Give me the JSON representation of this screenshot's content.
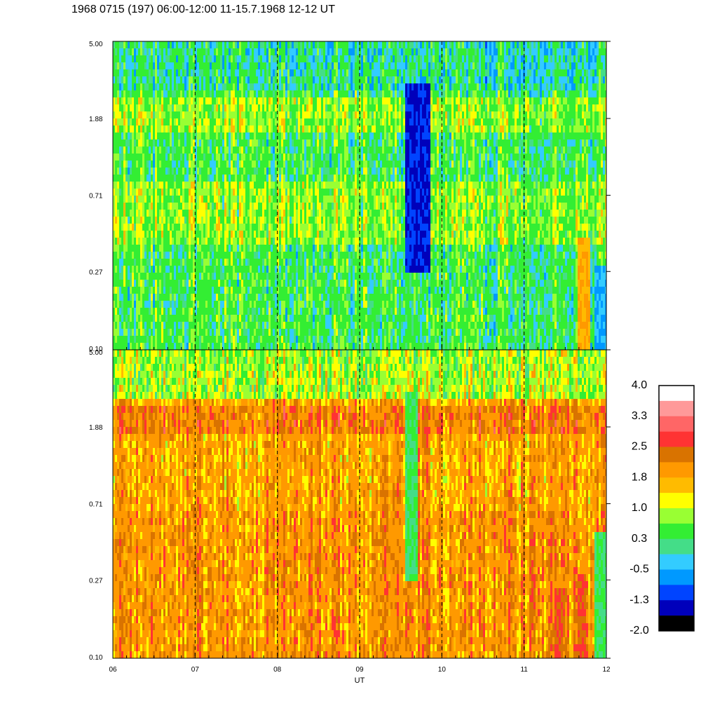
{
  "title": "1968 0715 (197) 06:00-12:00 11-15.7.1968  12-12 UT",
  "chart_data": [
    {
      "type": "heatmap",
      "panel": "upper",
      "title": "",
      "xlabel": "",
      "ylabel": "",
      "yscale": "log",
      "ylim": [
        0.1,
        5.0
      ],
      "y_tick_labels": [
        "5.00",
        "1.88",
        "0.71",
        "0.27",
        "0.10"
      ],
      "xlim": [
        6,
        12
      ],
      "x_dashed_markers": [
        7,
        8,
        9,
        10,
        11
      ],
      "dominant_level": 0.3,
      "features": [
        {
          "from": 9.55,
          "to": 9.85,
          "ymin": 0.27,
          "ymax": 3.0,
          "level": -1.3
        },
        {
          "from": 11.65,
          "to": 11.8,
          "ymin": 0.1,
          "ymax": 0.45,
          "level": 1.8
        },
        {
          "from": 11.85,
          "to": 12.0,
          "ymin": 0.1,
          "ymax": 0.3,
          "level": -0.5
        }
      ]
    },
    {
      "type": "heatmap",
      "panel": "lower",
      "title": "",
      "xlabel": "UT",
      "ylabel": "",
      "yscale": "log",
      "ylim": [
        0.1,
        5.0
      ],
      "y_tick_labels": [
        "5.00",
        "1.88",
        "0.71",
        "0.27",
        "0.10"
      ],
      "xlim": [
        6,
        12
      ],
      "x_tick_labels": [
        "06",
        "07",
        "08",
        "09",
        "10",
        "11",
        "12"
      ],
      "x_dashed_markers": [
        7,
        8,
        9,
        10,
        11
      ],
      "dominant_level": 1.8,
      "features": [
        {
          "from": 9.55,
          "to": 9.7,
          "ymin": 0.27,
          "ymax": 3.0,
          "level": 0.3
        },
        {
          "from": 11.35,
          "to": 11.45,
          "ymin": 0.1,
          "ymax": 0.25,
          "level": 2.5
        },
        {
          "from": 11.65,
          "to": 11.75,
          "ymin": 0.1,
          "ymax": 0.3,
          "level": 2.5
        },
        {
          "from": 11.85,
          "to": 12.0,
          "ymin": 0.1,
          "ymax": 0.5,
          "level": 0.3
        }
      ]
    }
  ],
  "colorbar": {
    "labels": [
      "4.0",
      "3.3",
      "2.5",
      "1.8",
      "1.0",
      "0.3",
      "-0.5",
      "-1.3",
      "-2.0"
    ],
    "colors": [
      "#ffffff",
      "#ff9999",
      "#ff6666",
      "#ff3333",
      "#d97300",
      "#ff9900",
      "#ffbb00",
      "#ffff00",
      "#99ff33",
      "#33ee33",
      "#44dd88",
      "#33ccff",
      "#0099ff",
      "#0044ff",
      "#0000bb",
      "#000000"
    ]
  }
}
